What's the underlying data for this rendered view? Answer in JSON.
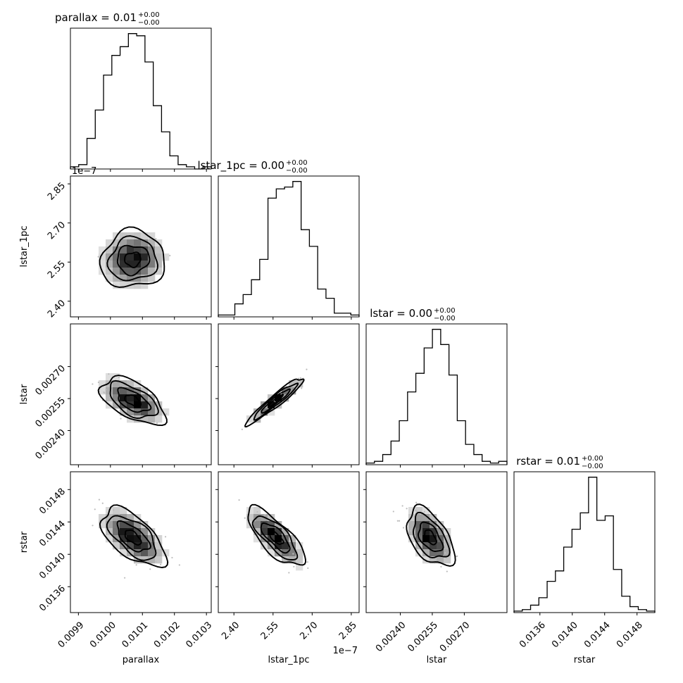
{
  "chart_data": {
    "type": "corner",
    "parameters": [
      "parallax",
      "lstar_1pc",
      "lstar",
      "rstar"
    ],
    "panel_titles": [
      {
        "param": "parallax",
        "base": "parallax = 0.01",
        "sup": "+0.00",
        "sub": "−0.00"
      },
      {
        "param": "lstar_1pc",
        "base": "lstar_1pc = 0.00",
        "sup": "+0.00",
        "sub": "−0.00"
      },
      {
        "param": "lstar",
        "base": "lstar = 0.00",
        "sup": "+0.00",
        "sub": "−0.00"
      },
      {
        "param": "rstar",
        "base": "rstar = 0.01",
        "sup": "+0.00",
        "sub": "−0.00"
      }
    ],
    "axis_labels": {
      "x": [
        "parallax",
        "lstar_1pc",
        "lstar",
        "rstar"
      ],
      "y": [
        "",
        "lstar_1pc",
        "lstar",
        "rstar"
      ]
    },
    "offset_labels": {
      "lstar_1pc_x": "1e−7",
      "lstar_1pc_y": "1e−7"
    },
    "ranges": {
      "parallax": [
        0.009875,
        0.010315
      ],
      "lstar_1pc": [
        2.34,
        2.88
      ],
      "lstar": [
        0.00224,
        0.0029
      ],
      "rstar": [
        0.01328,
        0.01502
      ]
    },
    "ticks": {
      "parallax": {
        "values": [
          0.0099,
          0.01,
          0.0101,
          0.0102,
          0.0103
        ],
        "labels": [
          "0.0099",
          "0.0100",
          "0.0101",
          "0.0102",
          "0.0103"
        ]
      },
      "lstar_1pc": {
        "values": [
          2.4,
          2.55,
          2.7,
          2.85
        ],
        "labels": [
          "2.40",
          "2.55",
          "2.70",
          "2.85"
        ]
      },
      "lstar": {
        "values": [
          0.0024,
          0.00255,
          0.0027
        ],
        "labels": [
          "0.00240",
          "0.00255",
          "0.00270"
        ]
      },
      "rstar": {
        "values": [
          0.0136,
          0.014,
          0.0144,
          0.0148
        ],
        "labels": [
          "0.0136",
          "0.0140",
          "0.0144",
          "0.0148"
        ]
      }
    },
    "histograms": {
      "parallax": [
        1,
        2,
        14,
        27,
        43,
        52,
        56,
        62,
        61,
        49,
        29,
        17,
        6,
        2,
        1,
        0,
        1
      ],
      "lstar_1pc": [
        1,
        1,
        7,
        12,
        20,
        31,
        64,
        69,
        70,
        73,
        47,
        38,
        15,
        10,
        2,
        2,
        1
      ],
      "lstar": [
        1,
        2,
        6,
        14,
        26,
        43,
        54,
        69,
        80,
        71,
        53,
        26,
        12,
        6,
        2,
        1,
        2
      ],
      "rstar": [
        1,
        2,
        5,
        10,
        21,
        28,
        44,
        56,
        67,
        91,
        62,
        65,
        29,
        11,
        4,
        2,
        1
      ]
    },
    "pairs": [
      {
        "x": "parallax",
        "y": "lstar_1pc",
        "mean": [
          0.01007,
          2.56
        ],
        "sd": [
          5e-05,
          0.055
        ],
        "corr": 0.05
      },
      {
        "x": "parallax",
        "y": "lstar",
        "mean": [
          0.01007,
          0.00254
        ],
        "sd": [
          5e-05,
          5.5e-05
        ],
        "corr": -0.55
      },
      {
        "x": "lstar_1pc",
        "y": "lstar",
        "mean": [
          2.56,
          0.00254
        ],
        "sd": [
          0.055,
          5.5e-05
        ],
        "corr": 0.95
      },
      {
        "x": "parallax",
        "y": "rstar",
        "mean": [
          0.01007,
          0.01421
        ],
        "sd": [
          5e-05,
          0.00018
        ],
        "corr": -0.6
      },
      {
        "x": "lstar_1pc",
        "y": "rstar",
        "mean": [
          2.56,
          0.01421
        ],
        "sd": [
          0.055,
          0.00018
        ],
        "corr": -0.75
      },
      {
        "x": "lstar",
        "y": "rstar",
        "mean": [
          0.00254,
          0.01421
        ],
        "sd": [
          5.5e-05,
          0.00018
        ],
        "corr": -0.5
      }
    ],
    "contour_levels_sigma": [
      0.5,
      1.0,
      1.5,
      2.0
    ],
    "grid": false
  }
}
